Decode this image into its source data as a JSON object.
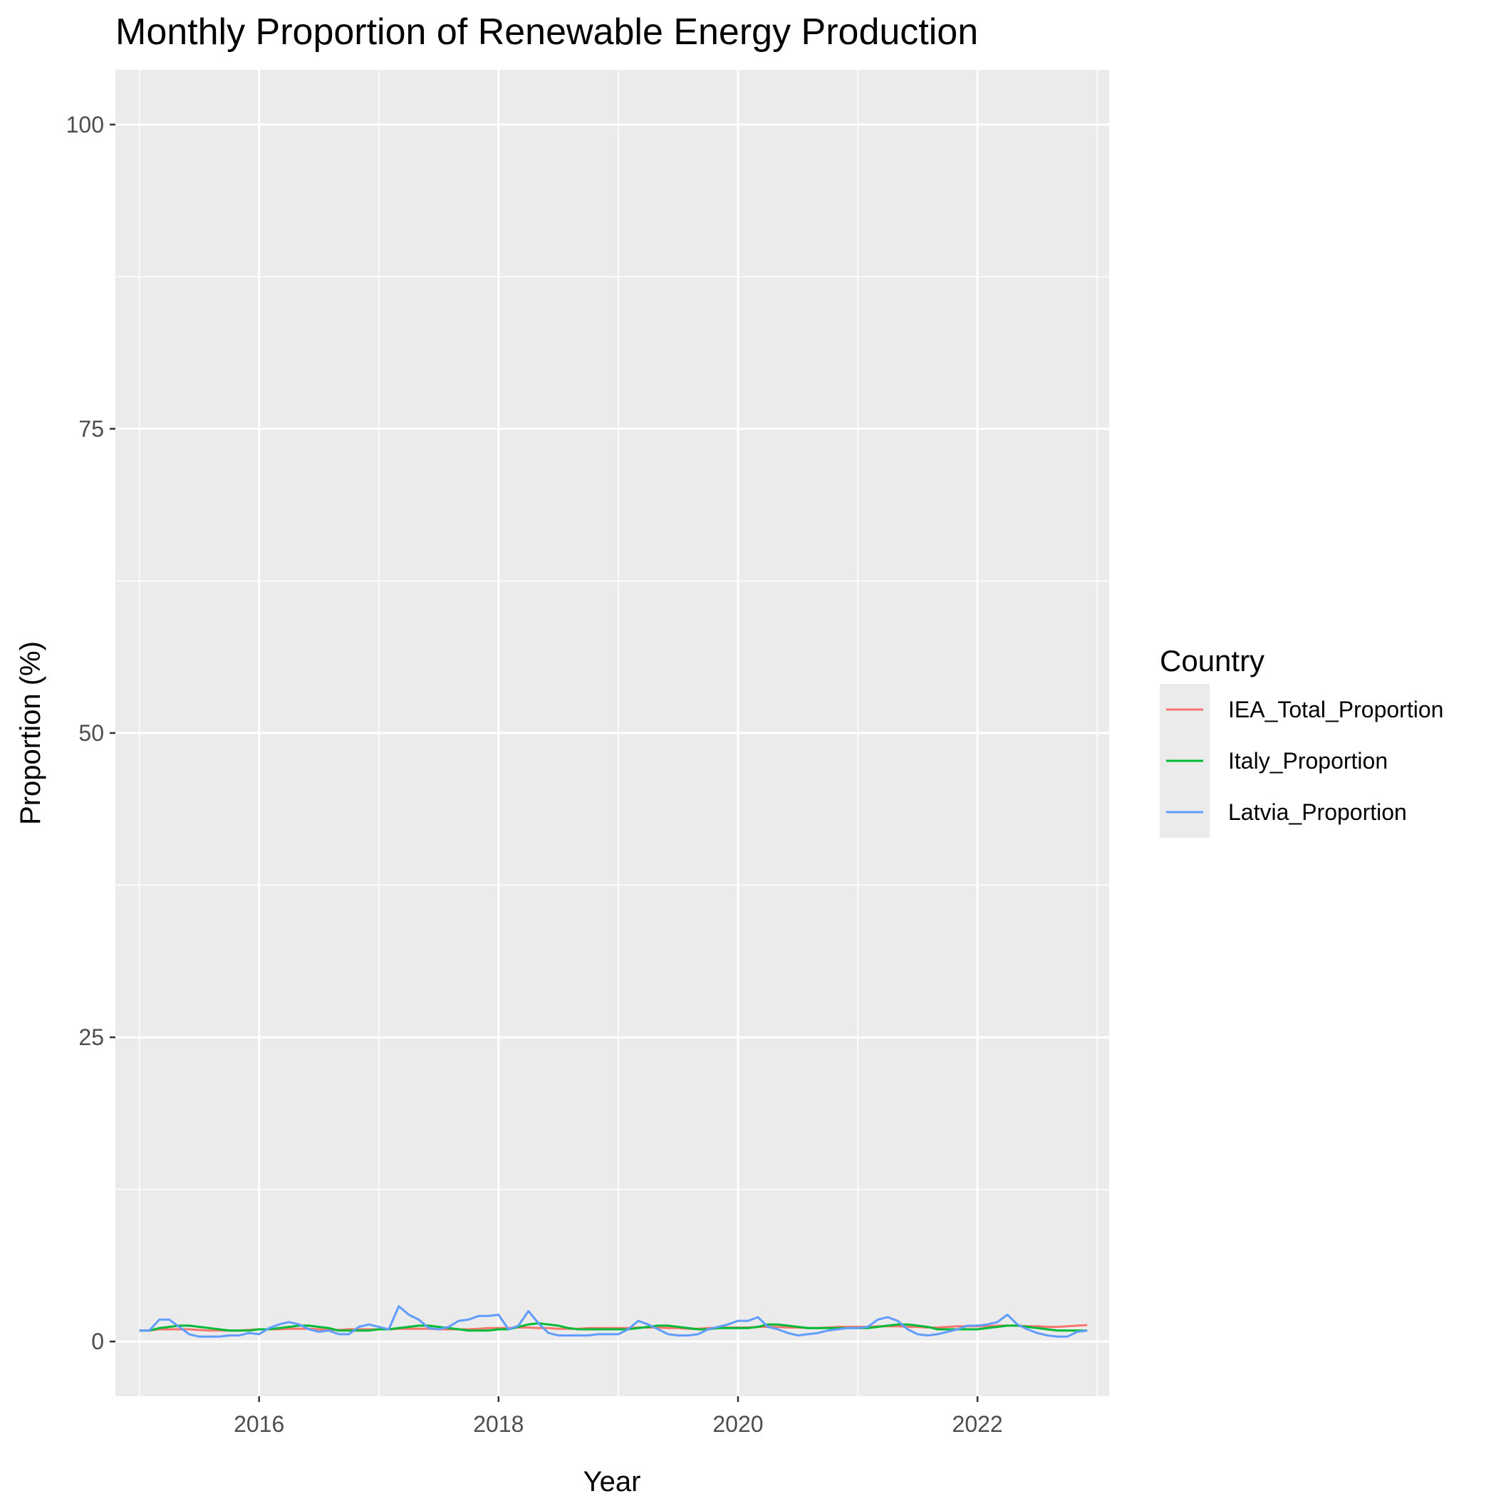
{
  "chart_data": {
    "type": "line",
    "title": "Monthly Proportion of Renewable Energy Production",
    "xlabel": "Year",
    "ylabel": "Proportion (%)",
    "xlim": [
      2014.8,
      2023.1
    ],
    "ylim": [
      -4.5,
      104.5
    ],
    "x_ticks": [
      2016,
      2018,
      2020,
      2022
    ],
    "y_ticks": [
      0,
      25,
      50,
      75,
      100
    ],
    "grid": true,
    "legend": {
      "title": "Country",
      "position": "right"
    },
    "x_start": 2015.0,
    "x_step": 0.0833333,
    "series": [
      {
        "name": "IEA_Total_Proportion",
        "color": "#F8766D",
        "values": [
          0.9,
          0.9,
          1.0,
          1.0,
          1.0,
          1.0,
          0.95,
          0.9,
          0.9,
          0.9,
          0.9,
          0.95,
          1.0,
          1.0,
          1.0,
          1.05,
          1.05,
          1.05,
          1.0,
          0.95,
          0.95,
          1.0,
          1.0,
          1.0,
          1.0,
          1.0,
          1.05,
          1.05,
          1.05,
          1.05,
          1.0,
          1.0,
          1.0,
          1.0,
          1.05,
          1.1,
          1.1,
          1.1,
          1.15,
          1.15,
          1.1,
          1.1,
          1.05,
          1.05,
          1.05,
          1.1,
          1.1,
          1.1,
          1.1,
          1.1,
          1.15,
          1.15,
          1.15,
          1.1,
          1.1,
          1.05,
          1.05,
          1.1,
          1.15,
          1.15,
          1.15,
          1.15,
          1.2,
          1.2,
          1.2,
          1.15,
          1.15,
          1.1,
          1.1,
          1.15,
          1.2,
          1.2,
          1.2,
          1.2,
          1.25,
          1.25,
          1.25,
          1.2,
          1.2,
          1.15,
          1.15,
          1.2,
          1.25,
          1.25,
          1.25,
          1.25,
          1.3,
          1.3,
          1.3,
          1.25,
          1.25,
          1.2,
          1.2,
          1.25,
          1.3,
          1.35
        ]
      },
      {
        "name": "Italy_Proportion",
        "color": "#00BA38",
        "values": [
          0.9,
          0.9,
          1.1,
          1.2,
          1.3,
          1.3,
          1.2,
          1.1,
          1.0,
          0.9,
          0.9,
          0.9,
          1.0,
          1.0,
          1.1,
          1.2,
          1.3,
          1.3,
          1.2,
          1.1,
          0.9,
          0.9,
          0.9,
          0.9,
          1.0,
          1.0,
          1.1,
          1.2,
          1.3,
          1.3,
          1.2,
          1.1,
          1.0,
          0.9,
          0.9,
          0.9,
          1.0,
          1.0,
          1.2,
          1.4,
          1.5,
          1.4,
          1.3,
          1.1,
          1.0,
          1.0,
          1.0,
          1.0,
          1.0,
          1.0,
          1.1,
          1.2,
          1.3,
          1.3,
          1.2,
          1.1,
          1.0,
          1.0,
          1.1,
          1.1,
          1.1,
          1.1,
          1.2,
          1.4,
          1.4,
          1.3,
          1.2,
          1.1,
          1.1,
          1.1,
          1.1,
          1.1,
          1.1,
          1.1,
          1.2,
          1.3,
          1.4,
          1.4,
          1.3,
          1.2,
          1.0,
          1.0,
          1.0,
          1.0,
          1.0,
          1.1,
          1.2,
          1.3,
          1.3,
          1.2,
          1.1,
          1.0,
          0.9,
          0.9,
          0.9,
          0.9
        ]
      },
      {
        "name": "Latvia_Proportion",
        "color": "#619CFF",
        "values": [
          0.9,
          0.9,
          1.8,
          1.8,
          1.2,
          0.6,
          0.4,
          0.4,
          0.4,
          0.5,
          0.5,
          0.7,
          0.6,
          1.1,
          1.4,
          1.6,
          1.4,
          1.0,
          0.8,
          0.9,
          0.6,
          0.6,
          1.2,
          1.4,
          1.2,
          1.0,
          2.9,
          2.2,
          1.8,
          1.1,
          1.0,
          1.2,
          1.7,
          1.8,
          2.1,
          2.1,
          2.2,
          1.0,
          1.3,
          2.5,
          1.5,
          0.7,
          0.5,
          0.5,
          0.5,
          0.5,
          0.6,
          0.6,
          0.6,
          1.0,
          1.7,
          1.4,
          1.0,
          0.6,
          0.5,
          0.5,
          0.6,
          1.0,
          1.2,
          1.4,
          1.7,
          1.7,
          2.0,
          1.2,
          1.0,
          0.7,
          0.5,
          0.6,
          0.7,
          0.9,
          1.0,
          1.1,
          1.1,
          1.2,
          1.8,
          2.0,
          1.7,
          1.0,
          0.6,
          0.5,
          0.6,
          0.8,
          1.0,
          1.3,
          1.3,
          1.4,
          1.6,
          2.2,
          1.4,
          1.0,
          0.7,
          0.5,
          0.4,
          0.4,
          0.8,
          0.9
        ]
      }
    ]
  }
}
